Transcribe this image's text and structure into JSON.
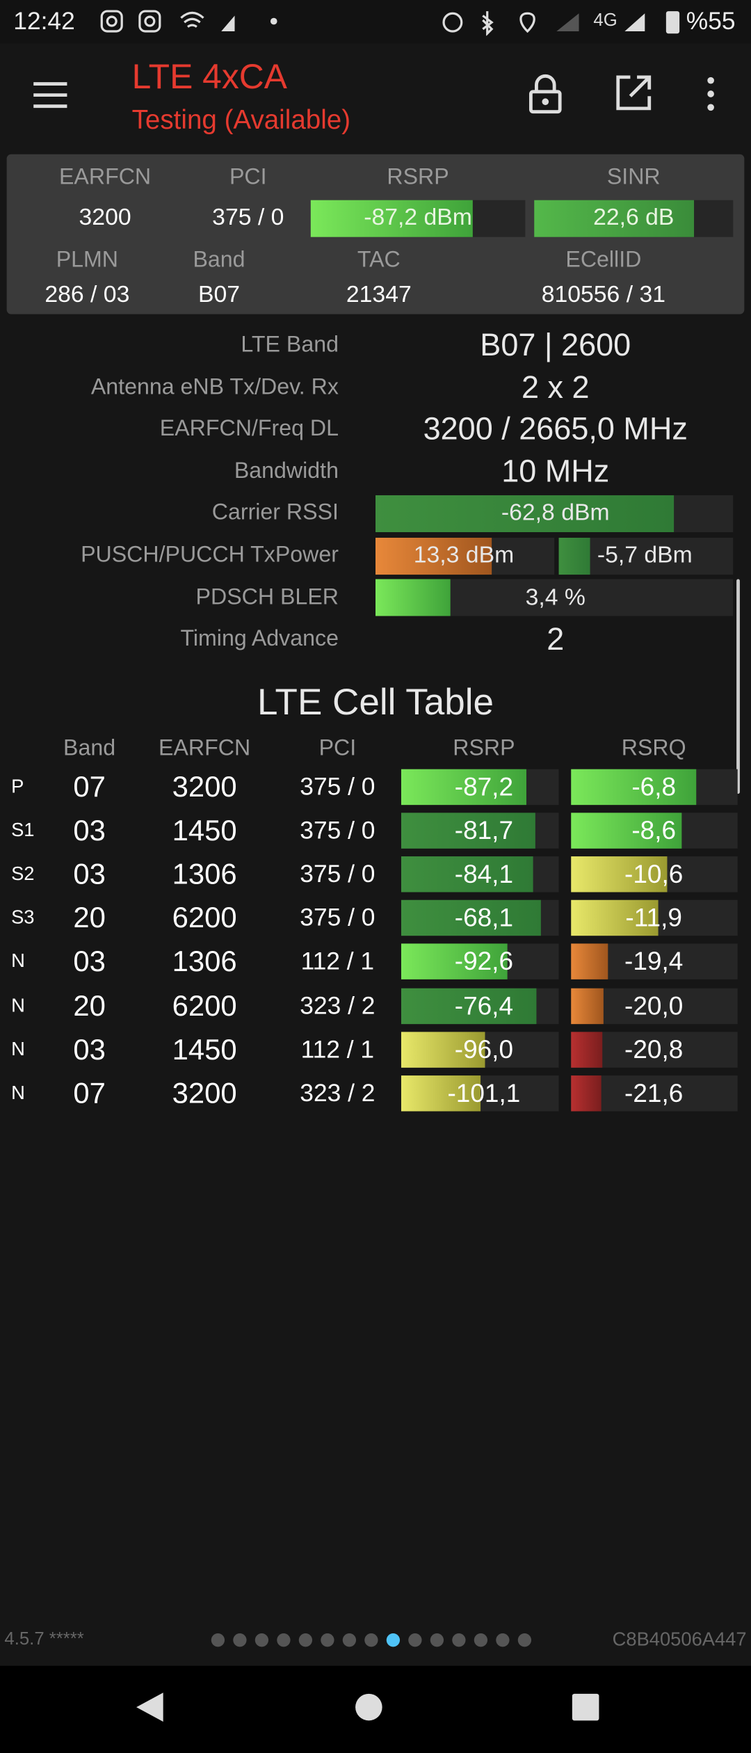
{
  "status_bar": {
    "time": "12:42",
    "network": "4G",
    "battery": "%55"
  },
  "toolbar": {
    "title": "LTE 4xCA",
    "subtitle": "Testing (Available)"
  },
  "summary": {
    "labels": [
      "EARFCN",
      "PCI",
      "RSRP",
      "SINR",
      "PLMN",
      "Band",
      "TAC",
      "ECellID"
    ],
    "values": [
      "3200",
      "375 / 0",
      "-87,2 dBm",
      "22,6 dB",
      "286 / 03",
      "B07",
      "21347",
      "810556 / 31"
    ]
  },
  "details": [
    {
      "label": "LTE Band",
      "values": [
        "B07 | 2600"
      ]
    },
    {
      "label": "Antenna eNB Tx/Dev. Rx",
      "values": [
        "2 x 2"
      ]
    },
    {
      "label": "EARFCN/Freq DL",
      "values": [
        "3200 / 2665,0 MHz"
      ]
    },
    {
      "label": "Bandwidth",
      "values": [
        "10 MHz"
      ]
    },
    {
      "label": "Carrier RSSI",
      "values": [
        "-62,8 dBm"
      ]
    },
    {
      "label": "PUSCH/PUCCH TxPower",
      "values": [
        "13,3 dBm",
        "-5,7 dBm"
      ]
    },
    {
      "label": "PDSCH BLER",
      "values": [
        "3,4 %"
      ]
    },
    {
      "label": "Timing Advance",
      "values": [
        "2"
      ]
    }
  ],
  "cell_table": {
    "title": "LTE Cell Table",
    "columns": [
      "Band",
      "EARFCN",
      "PCI",
      "RSRP",
      "RSRQ"
    ],
    "rows": [
      [
        "P",
        "07",
        "3200",
        "375 / 0",
        "-87,2",
        "-6,8"
      ],
      [
        "S1",
        "03",
        "1450",
        "375 / 0",
        "-81,7",
        "-8,6"
      ],
      [
        "S2",
        "03",
        "1306",
        "375 / 0",
        "-84,1",
        "-10,6"
      ],
      [
        "S3",
        "20",
        "6200",
        "375 / 0",
        "-68,1",
        "-11,9"
      ],
      [
        "N",
        "03",
        "1306",
        "112 / 1",
        "-92,6",
        "-19,4"
      ],
      [
        "N",
        "20",
        "6200",
        "323 / 2",
        "-76,4",
        "-20,0"
      ],
      [
        "N",
        "03",
        "1450",
        "112 / 1",
        "-96,0",
        "-20,8"
      ],
      [
        "N",
        "07",
        "3200",
        "323 / 2",
        "-101,1",
        "-21,6"
      ]
    ]
  },
  "footer": {
    "version": "4.5.7 *****",
    "device_id": "C8B40506A447"
  }
}
